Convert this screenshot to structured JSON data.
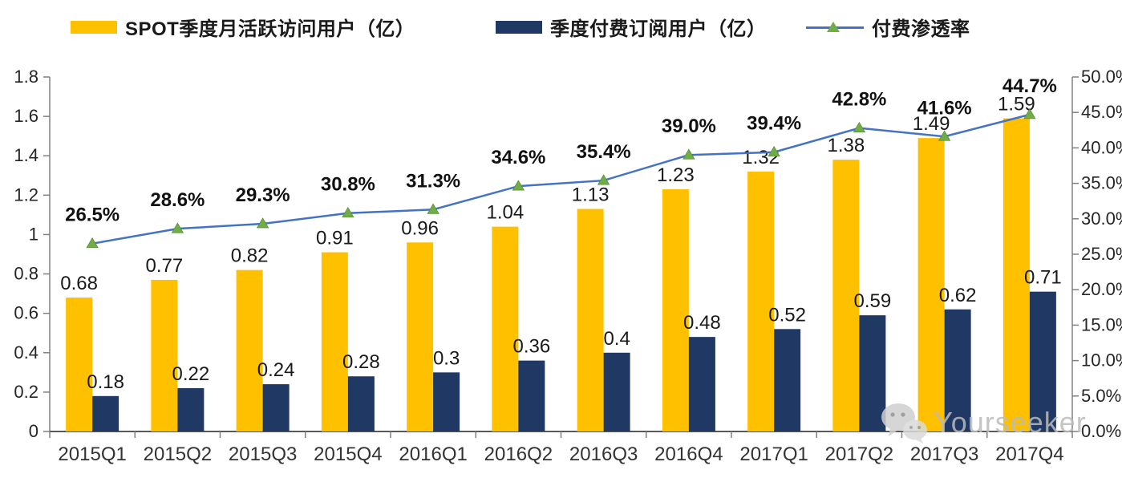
{
  "legend": [
    {
      "label": "SPOT季度月活跃访问用户（亿）",
      "swatch": "bar",
      "color": "#FFC000"
    },
    {
      "label": "季度付费订阅用户（亿）",
      "swatch": "bar",
      "color": "#1F3864"
    },
    {
      "label": "付费渗透率",
      "swatch": "line",
      "color": "#4472C4",
      "marker_color": "#70AD47"
    }
  ],
  "chart_data": {
    "type": "bar",
    "subtype": "combo-bar-line",
    "categories": [
      "2015Q1",
      "2015Q2",
      "2015Q3",
      "2015Q4",
      "2016Q1",
      "2016Q2",
      "2016Q3",
      "2016Q4",
      "2017Q1",
      "2017Q2",
      "2017Q3",
      "2017Q4"
    ],
    "series": [
      {
        "name": "SPOT季度月活跃访问用户（亿）",
        "type": "bar",
        "axis": "left",
        "color": "#FFC000",
        "values": [
          0.68,
          0.77,
          0.82,
          0.91,
          0.96,
          1.04,
          1.13,
          1.23,
          1.32,
          1.38,
          1.49,
          1.59
        ],
        "labels": [
          "0.68",
          "0.77",
          "0.82",
          "0.91",
          "0.96",
          "1.04",
          "1.13",
          "1.23",
          "1.32",
          "1.38",
          "1.49",
          "1.59"
        ]
      },
      {
        "name": "季度付费订阅用户（亿）",
        "type": "bar",
        "axis": "left",
        "color": "#1F3864",
        "values": [
          0.18,
          0.22,
          0.24,
          0.28,
          0.3,
          0.36,
          0.4,
          0.48,
          0.52,
          0.59,
          0.62,
          0.71
        ],
        "labels": [
          "0.18",
          "0.22",
          "0.24",
          "0.28",
          "0.3",
          "0.36",
          "0.4",
          "0.48",
          "0.52",
          "0.59",
          "0.62",
          "0.71"
        ]
      },
      {
        "name": "付费渗透率",
        "type": "line",
        "axis": "right",
        "color": "#4472C4",
        "marker": "triangle",
        "marker_color": "#70AD47",
        "values": [
          26.5,
          28.6,
          29.3,
          30.8,
          31.3,
          34.6,
          35.4,
          39.0,
          39.4,
          42.8,
          41.6,
          44.7
        ],
        "labels": [
          "26.5%",
          "28.6%",
          "29.3%",
          "30.8%",
          "31.3%",
          "34.6%",
          "35.4%",
          "39.0%",
          "39.4%",
          "42.8%",
          "41.6%",
          "44.7%"
        ]
      }
    ],
    "left_axis": {
      "min": 0,
      "max": 1.8,
      "step": 0.2,
      "ticks": [
        "0",
        "0.2",
        "0.4",
        "0.6",
        "0.8",
        "1",
        "1.2",
        "1.4",
        "1.6",
        "1.8"
      ]
    },
    "right_axis": {
      "min": 0,
      "max": 50,
      "step": 5,
      "ticks": [
        "0.0%",
        "5.0%",
        "10.0%",
        "15.0%",
        "20.0%",
        "25.0%",
        "30.0%",
        "35.0%",
        "40.0%",
        "45.0%",
        "50.0%"
      ]
    },
    "grid": false,
    "legend_position": "top",
    "title": ""
  },
  "watermark": {
    "text": "Yourseeker",
    "icon": "wechat"
  }
}
